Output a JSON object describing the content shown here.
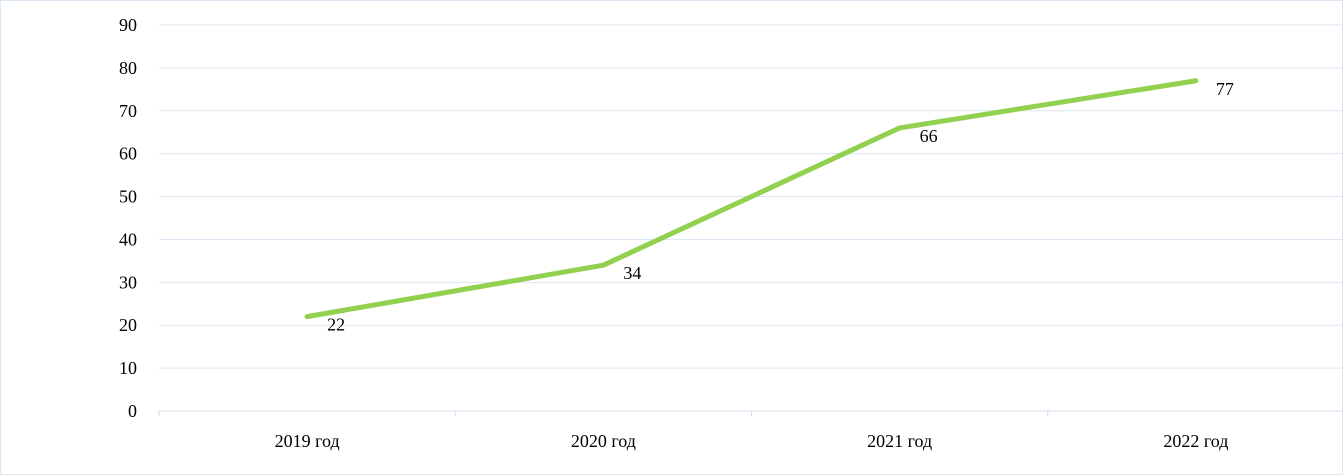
{
  "chart_data": {
    "type": "line",
    "title": "",
    "xlabel": "",
    "ylabel": "",
    "categories": [
      "2019 год",
      "2020 год",
      "2021 год",
      "2022 год"
    ],
    "series": [
      {
        "values": [
          22,
          34,
          66,
          77
        ],
        "color": "#92d050",
        "data_labels": [
          "22",
          "34",
          "66",
          "77"
        ]
      }
    ],
    "ylim": [
      0,
      90
    ],
    "yticks": [
      0,
      10,
      20,
      30,
      40,
      50,
      60,
      70,
      80,
      90
    ],
    "ytick_labels": [
      "0",
      "10",
      "20",
      "30",
      "40",
      "50",
      "60",
      "70",
      "80",
      "90"
    ],
    "grid": true,
    "gridline_color": "#dbe7f3",
    "legend": "none"
  }
}
